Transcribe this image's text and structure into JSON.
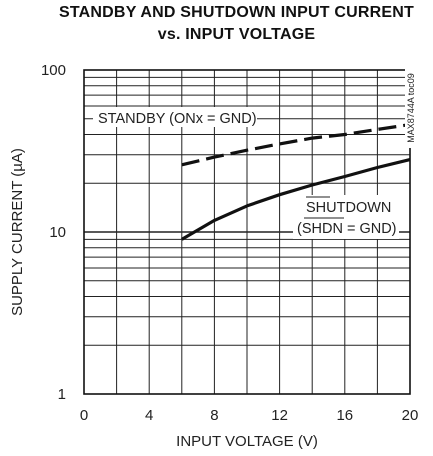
{
  "chart_data": {
    "type": "line",
    "title_lines": [
      "STANDBY AND SHUTDOWN INPUT CURRENT",
      "vs. INPUT VOLTAGE"
    ],
    "xlabel": "INPUT VOLTAGE (V)",
    "ylabel": "SUPPLY CURRENT (µA)",
    "xlim": [
      0,
      20
    ],
    "ylim": [
      1,
      100
    ],
    "yscale": "log",
    "grid": true,
    "x_ticks": [
      "0",
      "4",
      "8",
      "12",
      "16",
      "20"
    ],
    "y_ticks": [
      "1",
      "10",
      "100"
    ],
    "part_tag": "MAX8744A toc09",
    "series": [
      {
        "name": "STANDBY (ONx = GND)",
        "style": "dashed",
        "x": [
          6,
          8,
          10,
          12,
          14,
          16,
          18,
          20
        ],
        "y": [
          26,
          29,
          32,
          35,
          38,
          40,
          43,
          46
        ]
      },
      {
        "name": "SHUTDOWN (SHDN = GND)",
        "style": "solid",
        "x": [
          6,
          8,
          10,
          12,
          14,
          16,
          18,
          20
        ],
        "y": [
          9,
          11.8,
          14.5,
          17,
          19.5,
          22,
          25,
          28
        ]
      }
    ],
    "annotations": {
      "standby_text": "STANDBY (ONx = GND)",
      "shutdown_line1": "SHUTDOWN",
      "shutdown_line2_pre": "(",
      "shutdown_line2_overlined": "SHDN",
      "shutdown_line2_post": " = GND)"
    }
  }
}
